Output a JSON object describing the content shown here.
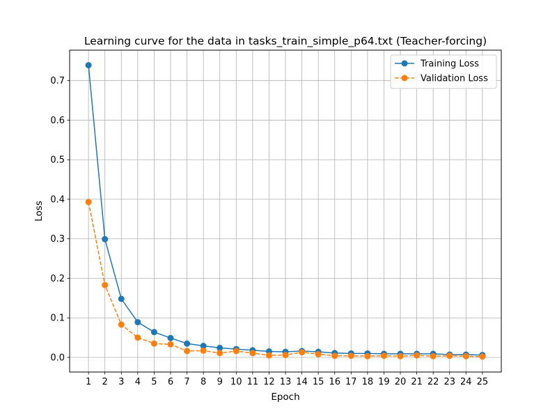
{
  "chart_data": {
    "type": "line",
    "title": "Learning curve for the data in tasks_train_simple_p64.txt (Teacher-forcing)",
    "xlabel": "Epoch",
    "ylabel": "Loss",
    "x": [
      1,
      2,
      3,
      4,
      5,
      6,
      7,
      8,
      9,
      10,
      11,
      12,
      13,
      14,
      15,
      16,
      17,
      18,
      19,
      20,
      21,
      22,
      23,
      24,
      25
    ],
    "xlim": [
      -0.15,
      26.15
    ],
    "ylim": [
      -0.037,
      0.777
    ],
    "yticks": [
      0.0,
      0.1,
      0.2,
      0.3,
      0.4,
      0.5,
      0.6,
      0.7
    ],
    "grid": true,
    "legend_position": "top-right",
    "series": [
      {
        "name": "Training Loss",
        "color": "#1f77b4",
        "line_style": "solid",
        "marker": "circle",
        "values": [
          0.739,
          0.299,
          0.148,
          0.089,
          0.064,
          0.049,
          0.035,
          0.029,
          0.024,
          0.021,
          0.018,
          0.015,
          0.014,
          0.016,
          0.014,
          0.011,
          0.01,
          0.01,
          0.009,
          0.009,
          0.009,
          0.009,
          0.007,
          0.007,
          0.006
        ]
      },
      {
        "name": "Validation Loss",
        "color": "#ff7f0e",
        "line_style": "dashed",
        "marker": "circle",
        "values": [
          0.393,
          0.183,
          0.083,
          0.05,
          0.035,
          0.033,
          0.016,
          0.017,
          0.011,
          0.016,
          0.011,
          0.005,
          0.006,
          0.013,
          0.008,
          0.004,
          0.004,
          0.003,
          0.004,
          0.003,
          0.005,
          0.003,
          0.004,
          0.003,
          0.002
        ]
      }
    ]
  }
}
